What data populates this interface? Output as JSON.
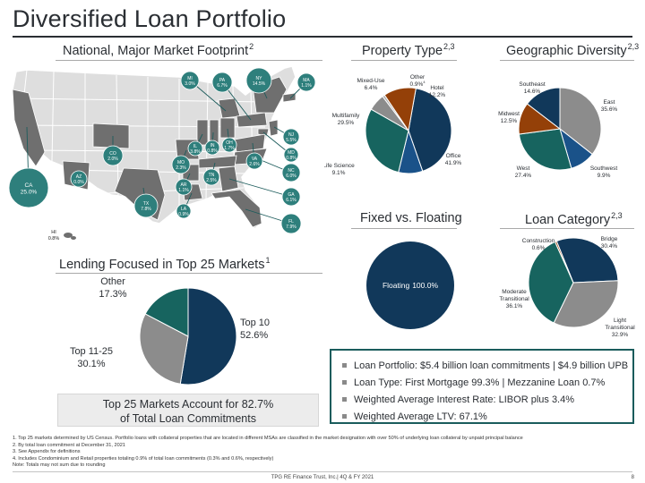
{
  "page": {
    "title": "Diversified Loan Portfolio",
    "footer": "TPG RE Finance Trust, Inc.| 4Q & FY 2021",
    "page_number": "8"
  },
  "sections": {
    "map": {
      "title": "National, Major Market Footprint",
      "sup": "2"
    },
    "lending": {
      "title": "Lending Focused in Top 25 Markets",
      "sup": "1"
    },
    "property": {
      "title": "Property Type",
      "sup": "2,3"
    },
    "geo": {
      "title": "Geographic Diversity",
      "sup": "2,3"
    },
    "fixed": {
      "title": "Fixed vs. Floating",
      "sup": ""
    },
    "category": {
      "title": "Loan Category",
      "sup": "2,3"
    }
  },
  "map_markers": [
    {
      "state": "MI",
      "value": "3.0%"
    },
    {
      "state": "PA",
      "value": "6.7%"
    },
    {
      "state": "NY",
      "value": "14.5%"
    },
    {
      "state": "MA",
      "value": "1.1%"
    },
    {
      "state": "NJ",
      "value": "5.5%"
    },
    {
      "state": "MD",
      "value": "0.8%"
    },
    {
      "state": "CO",
      "value": "2.0%"
    },
    {
      "state": "IL",
      "value": "3.8%"
    },
    {
      "state": "IN",
      "value": "0.8%"
    },
    {
      "state": "OH",
      "value": "1.7%"
    },
    {
      "state": "VA",
      "value": "2.6%"
    },
    {
      "state": "NC",
      "value": "6.0%"
    },
    {
      "state": "MO",
      "value": "2.3%"
    },
    {
      "state": "TN",
      "value": "2.5%"
    },
    {
      "state": "AZ",
      "value": "0.0%"
    },
    {
      "state": "AR",
      "value": "1.1%"
    },
    {
      "state": "GA",
      "value": "6.1%"
    },
    {
      "state": "CA",
      "value": "25.0%"
    },
    {
      "state": "TX",
      "value": "7.8%"
    },
    {
      "state": "LA",
      "value": "0.9%"
    },
    {
      "state": "FL",
      "value": "7.9%"
    },
    {
      "state": "HI",
      "value": "0.8%"
    }
  ],
  "summary": {
    "line1": "Top 25 Markets Account for 82.7%",
    "line2": "of Total Loan Commitments"
  },
  "stats": [
    "Loan Portfolio: $5.4 billion loan commitments | $4.9 billion UPB",
    "Loan Type: First Mortgage 99.3% | Mezzanine Loan 0.7%",
    "Weighted Average Interest Rate: LIBOR plus 3.4%",
    "Weighted Average LTV: 67.1%"
  ],
  "footnotes": [
    "1. Top 25 markets determined by US Census. Portfolio loans with collateral properties that are located in different MSAs are classified in the market designation with over 50% of underlying loan collateral by unpaid principal balance",
    "2. By total loan commitment at December 31, 2021",
    "3. See Appendix for definitions",
    "4. Includes Condominium and Retail properties totaling 0.9% of total loan commitments (0.3% and 0.6%, respectively)",
    "Note: Totals may not sum due to rounding"
  ],
  "chart_data": [
    {
      "type": "pie",
      "id": "lending",
      "series": [
        {
          "name": "Top 10",
          "value": 52.6,
          "label": "52.6%",
          "color": "#11385a"
        },
        {
          "name": "Top 11-25",
          "value": 30.1,
          "label": "30.1%",
          "color": "#8c8c8c"
        },
        {
          "name": "Other",
          "value": 17.3,
          "label": "17.3%",
          "color": "#17645f"
        }
      ]
    },
    {
      "type": "pie",
      "id": "property",
      "series": [
        {
          "name": "Office",
          "value": 41.9,
          "label": "41.9%",
          "color": "#11385a"
        },
        {
          "name": "Life Science",
          "value": 9.1,
          "label": "9.1%",
          "color": "#1a5289"
        },
        {
          "name": "Multifamily",
          "value": 29.5,
          "label": "29.5%",
          "color": "#17645f"
        },
        {
          "name": "Mixed-Use",
          "value": 6.4,
          "label": "6.4%",
          "color": "#8c8c8c"
        },
        {
          "name": "Other",
          "value": 0.9,
          "label": "0.9%",
          "sup": "4",
          "color": "#b0b0b0"
        },
        {
          "name": "Hotel",
          "value": 12.2,
          "label": "12.2%",
          "color": "#944008"
        }
      ]
    },
    {
      "type": "pie",
      "id": "geo",
      "series": [
        {
          "name": "East",
          "value": 35.6,
          "label": "35.6%",
          "color": "#8c8c8c"
        },
        {
          "name": "Southwest",
          "value": 9.9,
          "label": "9.9%",
          "color": "#1a5289"
        },
        {
          "name": "West",
          "value": 27.4,
          "label": "27.4%",
          "color": "#17645f"
        },
        {
          "name": "Midwest",
          "value": 12.5,
          "label": "12.5%",
          "color": "#944008"
        },
        {
          "name": "Southeast",
          "value": 14.6,
          "label": "14.6%",
          "color": "#11385a"
        }
      ]
    },
    {
      "type": "pie",
      "id": "fixed",
      "series": [
        {
          "name": "Floating",
          "value": 100.0,
          "label": "100.0%",
          "color": "#11385a"
        }
      ]
    },
    {
      "type": "pie",
      "id": "category",
      "series": [
        {
          "name": "Bridge",
          "value": 30.4,
          "label": "30.4%",
          "color": "#11385a"
        },
        {
          "name": "Light Transitional",
          "value": 32.9,
          "label": "32.9%",
          "color": "#8c8c8c"
        },
        {
          "name": "Moderate Transitional",
          "value": 36.1,
          "label": "36.1%",
          "color": "#17645f"
        },
        {
          "name": "Construction",
          "value": 0.6,
          "label": "0.6%",
          "color": "#944008"
        }
      ]
    }
  ]
}
